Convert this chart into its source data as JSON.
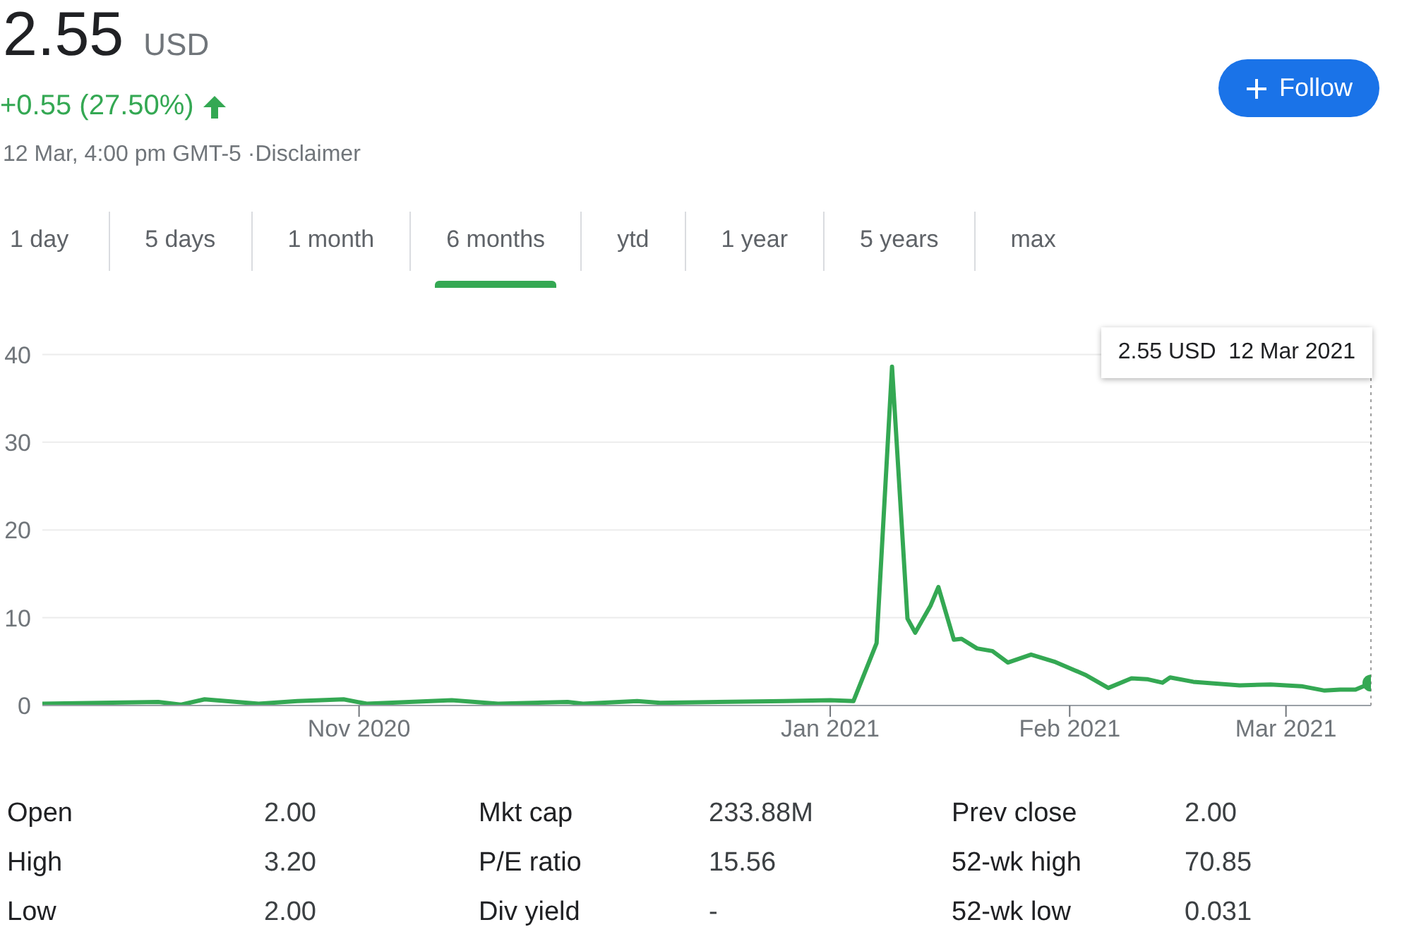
{
  "chart_data": {
    "type": "line",
    "title": "2.55",
    "subtitle": "USD",
    "x": [
      "2020-09-21",
      "2020-10-06",
      "2020-10-09",
      "2020-10-12",
      "2020-10-19",
      "2020-10-24",
      "2020-10-30",
      "2020-11-02",
      "2020-11-13",
      "2020-11-19",
      "2020-11-28",
      "2020-11-30",
      "2020-12-07",
      "2020-12-10",
      "2020-12-26",
      "2021-01-01",
      "2021-01-04",
      "2021-01-07",
      "2021-01-09",
      "2021-01-11",
      "2021-01-12",
      "2021-01-14",
      "2021-01-15",
      "2021-01-17",
      "2021-01-18",
      "2021-01-20",
      "2021-01-22",
      "2021-01-24",
      "2021-01-27",
      "2021-01-30",
      "2021-02-03",
      "2021-02-06",
      "2021-02-09",
      "2021-02-11",
      "2021-02-13",
      "2021-02-14",
      "2021-02-17",
      "2021-02-20",
      "2021-02-23",
      "2021-02-27",
      "2021-03-03",
      "2021-03-06",
      "2021-03-08",
      "2021-03-10",
      "2021-03-12"
    ],
    "values": [
      0.2,
      0.4,
      0.1,
      0.7,
      0.2,
      0.5,
      0.7,
      0.2,
      0.6,
      0.2,
      0.4,
      0.2,
      0.5,
      0.3,
      0.5,
      0.6,
      0.5,
      7.1,
      38.6,
      9.9,
      8.3,
      11.4,
      13.5,
      7.5,
      7.6,
      6.5,
      6.2,
      4.9,
      5.8,
      5.0,
      3.5,
      2.0,
      3.1,
      3.0,
      2.6,
      3.2,
      2.7,
      2.5,
      2.3,
      2.4,
      2.2,
      1.7,
      1.8,
      1.8,
      2.55
    ],
    "color": "#34a853",
    "xlim": [
      "2020-09-21",
      "2021-03-12"
    ],
    "xticks": [
      {
        "value": "2020-11-01",
        "label": "Nov 2020"
      },
      {
        "value": "2021-01-01",
        "label": "Jan 2021"
      },
      {
        "value": "2021-02-01",
        "label": "Feb 2021"
      },
      {
        "value": "2021-03-01",
        "label": "Mar 2021"
      }
    ],
    "ylim": [
      0,
      41
    ],
    "yticks": [
      0,
      10,
      20,
      30,
      40
    ],
    "grid": "y",
    "ref_lines": [
      {
        "axis": "x",
        "value": "2021-03-12",
        "line_style": "dotted",
        "color": "#9e9e9e"
      }
    ],
    "annotations": [
      "+0.55 (27.50%)",
      "12 Mar, 4:00 pm GMT-5 ·Disclaimer",
      "Follow",
      "1 day",
      "5 days",
      "1 month",
      "6 months",
      "ytd",
      "1 year",
      "5 years",
      "max",
      "Open",
      "2.00",
      "High",
      "3.20",
      "Low",
      "2.00",
      "Mkt cap",
      "233.88M",
      "P/E ratio",
      "15.56",
      "Div yield",
      "-",
      "Prev close",
      "2.00",
      "52-wk high",
      "70.85",
      "52-wk low",
      "0.031",
      "2.55 USD  12 Mar 2021"
    ]
  }
}
